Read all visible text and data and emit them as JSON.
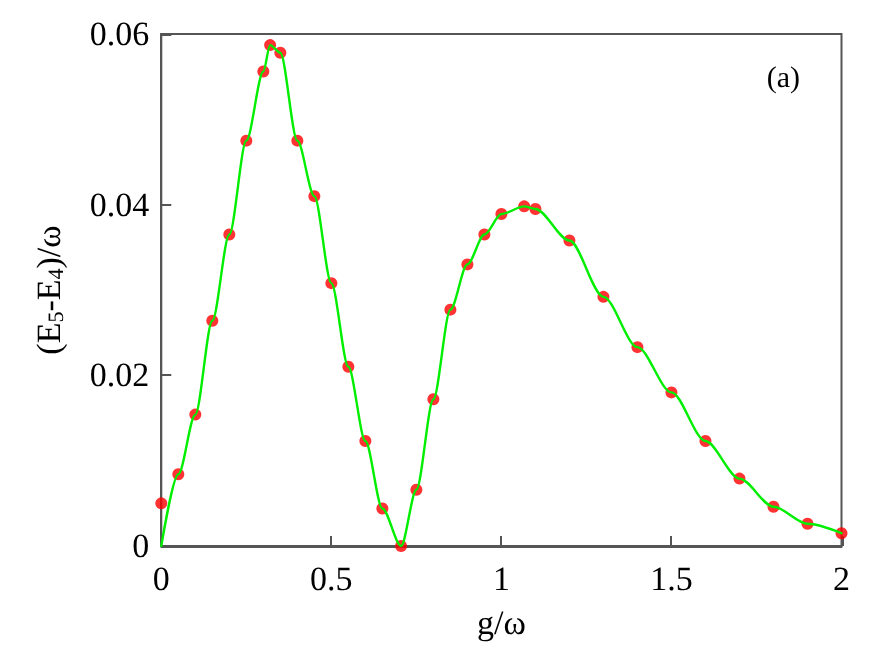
{
  "chart_data": {
    "type": "line",
    "xlabel": "g/ω",
    "ylabel": "(E$_{5}$-E$_{4}$)/ω",
    "xlim": [
      0,
      2
    ],
    "xticks": [
      0,
      0.5,
      1,
      1.5,
      2
    ],
    "ylim": [
      0,
      0.06
    ],
    "yticks": [
      0,
      0.02,
      0.04,
      0.06
    ],
    "grid": false,
    "annotations": [
      "(a)"
    ],
    "x": [
      0,
      0.05,
      0.1,
      0.15,
      0.2,
      0.25,
      0.3,
      0.32,
      0.35,
      0.4,
      0.45,
      0.5,
      0.55,
      0.6,
      0.65,
      0.705,
      0.75,
      0.8,
      0.85,
      0.9,
      0.95,
      1.0,
      1.067,
      1.1,
      1.2,
      1.3,
      1.4,
      1.5,
      1.6,
      1.7,
      1.8,
      1.9,
      2.0
    ],
    "series": [
      {
        "type": "scatter",
        "marker": "circle",
        "color": "#ff0000",
        "values": [
          0.005,
          0.0084,
          0.0154,
          0.0264,
          0.0365,
          0.0475,
          0.0556,
          0.0587,
          0.0578,
          0.0475,
          0.041,
          0.0308,
          0.021,
          0.0123,
          0.0044,
          0,
          0.0066,
          0.0172,
          0.0277,
          0.033,
          0.0365,
          0.0389,
          0.0398,
          0.0395,
          0.0358,
          0.0292,
          0.0233,
          0.018,
          0.0123,
          0.0079,
          0.0046,
          0.0026,
          0.0015
        ]
      },
      {
        "marker": "none",
        "line_style": "solid",
        "color": "#00ee00",
        "values": [
          0,
          0.0084,
          0.0154,
          0.0264,
          0.0365,
          0.0475,
          0.0556,
          0.0587,
          0.0578,
          0.0475,
          0.041,
          0.0308,
          0.021,
          0.0123,
          0.0044,
          0,
          0.0066,
          0.0172,
          0.0277,
          0.033,
          0.0365,
          0.0389,
          0.0398,
          0.0395,
          0.0358,
          0.0292,
          0.0233,
          0.018,
          0.0123,
          0.0079,
          0.0046,
          0.0026,
          0.0015
        ]
      }
    ]
  }
}
